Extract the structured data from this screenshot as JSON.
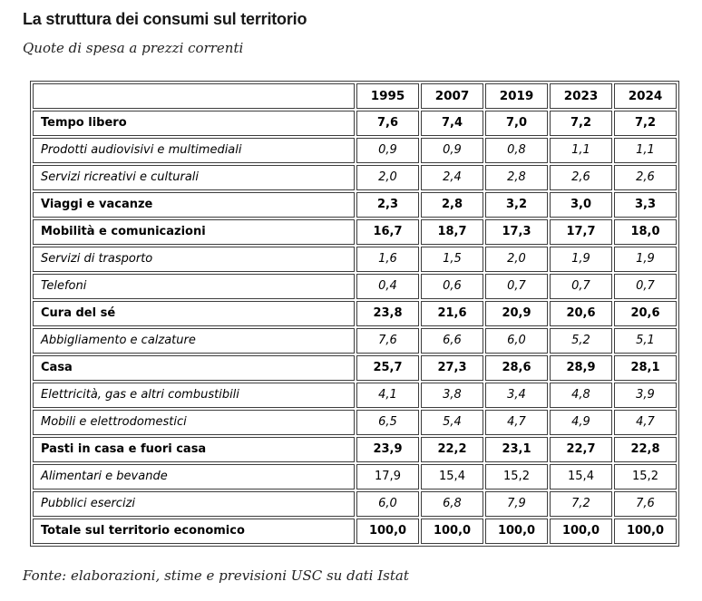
{
  "page": {
    "title": "La struttura dei consumi sul territorio",
    "subtitle": "Quote di spesa a prezzi correnti",
    "source": "Fonte: elaborazioni, stime e previsioni USC su dati Istat"
  },
  "colors": {
    "background": "#ffffff",
    "text": "#000000",
    "title_text": "#181818",
    "table_border": "#3d3d3d"
  },
  "chart_data": {
    "type": "table",
    "title": "La struttura dei consumi sul territorio",
    "subtitle": "Quote di spesa a prezzi correnti",
    "columns": [
      "",
      "1995",
      "2007",
      "2019",
      "2023",
      "2024"
    ],
    "rows": [
      {
        "label": "Tempo libero",
        "emphasis": "bold",
        "values": [
          "7,6",
          "7,4",
          "7,0",
          "7,2",
          "7,2"
        ]
      },
      {
        "label": "Prodotti audiovisivi e multimediali",
        "emphasis": "italic",
        "values": [
          "0,9",
          "0,9",
          "0,8",
          "1,1",
          "1,1"
        ]
      },
      {
        "label": "Servizi ricreativi e culturali",
        "emphasis": "italic",
        "values": [
          "2,0",
          "2,4",
          "2,8",
          "2,6",
          "2,6"
        ]
      },
      {
        "label": "Viaggi e vacanze",
        "emphasis": "bold",
        "values": [
          "2,3",
          "2,8",
          "3,2",
          "3,0",
          "3,3"
        ]
      },
      {
        "label": "Mobilità e comunicazioni",
        "emphasis": "bold",
        "values": [
          "16,7",
          "18,7",
          "17,3",
          "17,7",
          "18,0"
        ]
      },
      {
        "label": "Servizi di trasporto",
        "emphasis": "italic",
        "values": [
          "1,6",
          "1,5",
          "2,0",
          "1,9",
          "1,9"
        ]
      },
      {
        "label": "Telefoni",
        "emphasis": "italic",
        "values": [
          "0,4",
          "0,6",
          "0,7",
          "0,7",
          "0,7"
        ]
      },
      {
        "label": "Cura del sé",
        "emphasis": "bold",
        "values": [
          "23,8",
          "21,6",
          "20,9",
          "20,6",
          "20,6"
        ]
      },
      {
        "label": "Abbigliamento e calzature",
        "emphasis": "italic",
        "values": [
          "7,6",
          "6,6",
          "6,0",
          "5,2",
          "5,1"
        ]
      },
      {
        "label": "Casa",
        "emphasis": "bold",
        "values": [
          "25,7",
          "27,3",
          "28,6",
          "28,9",
          "28,1"
        ]
      },
      {
        "label": "Elettricità, gas e altri combustibili",
        "emphasis": "italic",
        "values": [
          "4,1",
          "3,8",
          "3,4",
          "4,8",
          "3,9"
        ]
      },
      {
        "label": "Mobili e elettrodomestici",
        "emphasis": "italic",
        "values": [
          "6,5",
          "5,4",
          "4,7",
          "4,9",
          "4,7"
        ]
      },
      {
        "label": "Pasti in casa e fuori casa",
        "emphasis": "bold",
        "values": [
          "23,9",
          "22,2",
          "23,1",
          "22,7",
          "22,8"
        ]
      },
      {
        "label": "Alimentari e bevande",
        "emphasis": "italic",
        "values_plain": true,
        "values": [
          "17,9",
          "15,4",
          "15,2",
          "15,4",
          "15,2"
        ]
      },
      {
        "label": "Pubblici esercizi",
        "emphasis": "italic",
        "values": [
          "6,0",
          "6,8",
          "7,9",
          "7,2",
          "7,6"
        ]
      },
      {
        "label": "Totale sul territorio economico",
        "emphasis": "bold",
        "values": [
          "100,0",
          "100,0",
          "100,0",
          "100,0",
          "100,0"
        ]
      }
    ],
    "source": "Fonte: elaborazioni, stime e previsioni USC su dati Istat",
    "layout": {
      "grid": true,
      "legend": "none",
      "value_format": "decimal-comma"
    }
  }
}
